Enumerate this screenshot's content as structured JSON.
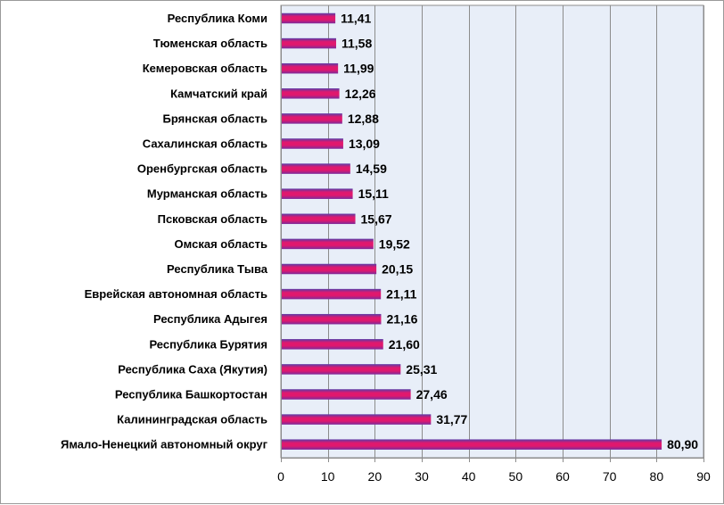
{
  "chart_data": {
    "type": "bar",
    "orientation": "horizontal",
    "title": "",
    "xlabel": "",
    "ylabel": "",
    "xlim": [
      0,
      90
    ],
    "x_ticks": [
      0,
      10,
      20,
      30,
      40,
      50,
      60,
      70,
      80,
      90
    ],
    "grid": "vertical",
    "legend": "none",
    "categories": [
      "Республика Коми",
      "Тюменская область",
      "Кемеровская область",
      "Камчатский край",
      "Брянская область",
      "Сахалинская область",
      "Оренбургская область",
      "Мурманская область",
      "Псковская область",
      "Омская область",
      "Республика Тыва",
      "Еврейская автономная область",
      "Республика Адыгея",
      "Республика Бурятия",
      "Республика Саха (Якутия)",
      "Республика Башкортостан",
      "Калининградская область",
      "Ямало-Ненецкий автономный округ"
    ],
    "values": [
      11.41,
      11.58,
      11.99,
      12.26,
      12.88,
      13.09,
      14.59,
      15.11,
      15.67,
      19.52,
      20.15,
      21.11,
      21.16,
      21.6,
      25.31,
      27.46,
      31.77,
      80.9
    ],
    "value_labels": [
      "11,41",
      "11,58",
      "11,99",
      "12,26",
      "12,88",
      "13,09",
      "14,59",
      "15,11",
      "15,67",
      "19,52",
      "20,15",
      "21,11",
      "21,16",
      "21,60",
      "25,31",
      "27,46",
      "31,77",
      "80,90"
    ],
    "colors": {
      "plot_background": "#e8eef8",
      "gridline": "#8c8c8c",
      "bar_top": "#5a3ca8",
      "bar_mid": "#e0186e",
      "bar_bottom": "#7a2a9c"
    }
  }
}
